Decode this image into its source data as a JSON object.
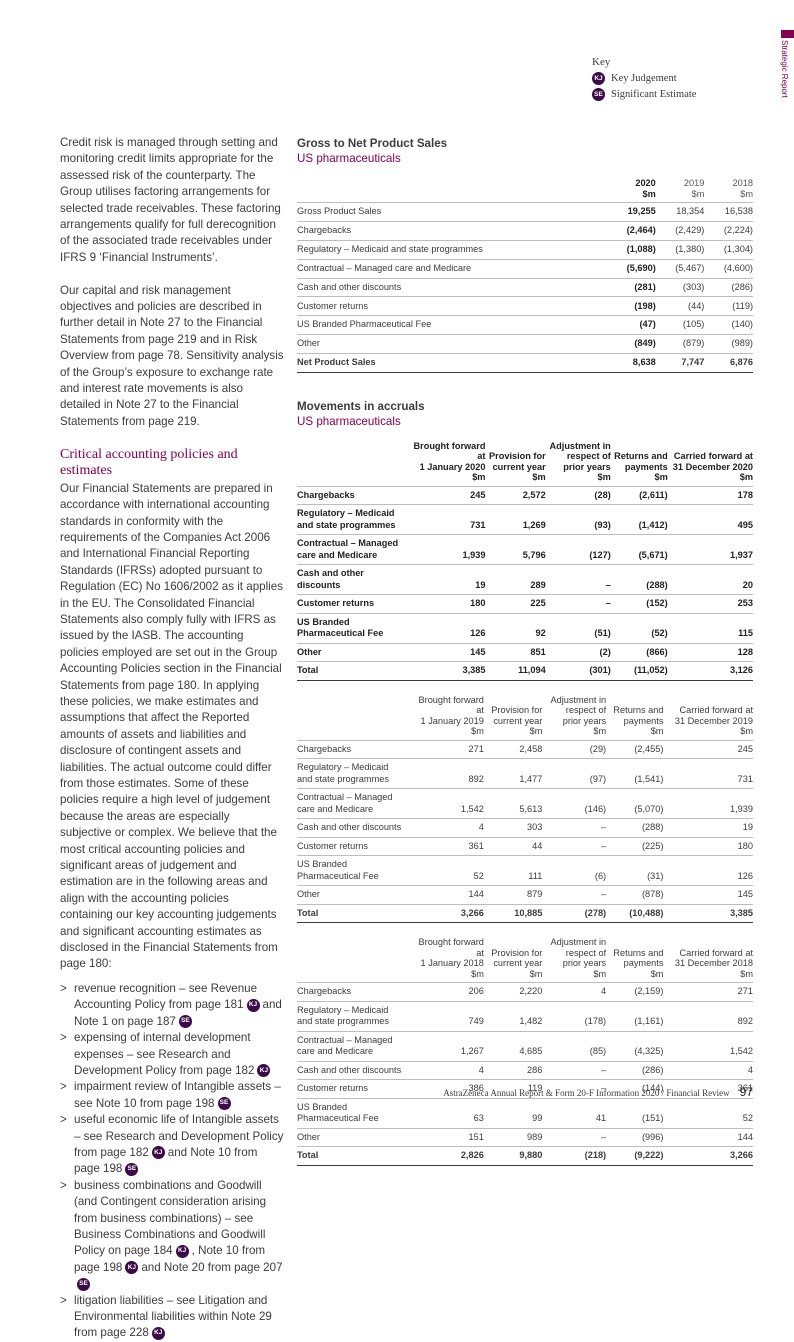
{
  "side_label": "Strategic Report",
  "key": {
    "title": "Key",
    "items": [
      {
        "badge": "KJ",
        "label": "Key Judgement"
      },
      {
        "badge": "SE",
        "label": "Significant Estimate"
      }
    ]
  },
  "left": {
    "paragraphs_top": [
      "Credit risk is managed through setting and monitoring credit limits appropriate for the assessed risk of the counterparty. The Group utilises factoring arrangements for selected trade receivables. These factoring arrangements qualify for full derecognition of the associated trade receivables under IFRS 9 ‘Financial Instruments’.",
      "Our capital and risk management objectives and policies are described in further detail in Note 27 to the Financial Statements from page 219 and in Risk Overview from page 78. Sensitivity analysis of the Group’s exposure to exchange rate and interest rate movements is also detailed in Note 27 to the Financial Statements from page 219."
    ],
    "heading": "Critical accounting policies and estimates",
    "paragraph": "Our Financial Statements are prepared in accordance with international accounting standards in conformity with the requirements of the Companies Act 2006 and International Financial Reporting Standards (IFRSs) adopted pursuant to Regulation (EC) No 1606/2002 as it applies in the EU. The Consolidated Financial Statements also comply fully with IFRS as issued by the IASB. The accounting policies employed are set out in the Group Accounting Policies section in the Financial Statements from page 180. In applying these policies, we make estimates and assumptions that affect the Reported amounts of assets and liabilities and disclosure of contingent assets and liabilities. The actual outcome could differ from those estimates. Some of these policies require a high level of judgement because the areas are especially subjective or complex. We believe that the most critical accounting policies and significant areas of judgement and estimation are in the following areas and align with the accounting policies containing our key accounting judgements and significant accounting estimates as disclosed in the Financial Statements from page 180:",
    "bullet_marker": ">",
    "bullets": [
      [
        {
          "text": "revenue recognition – see Revenue Accounting Policy from page 181"
        },
        {
          "badge": "KJ"
        },
        {
          "text": "and Note 1 on page 187"
        },
        {
          "badge": "SE"
        }
      ],
      [
        {
          "text": "expensing of internal development expenses – see Research and Development Policy from page 182"
        },
        {
          "badge": "KJ"
        }
      ],
      [
        {
          "text": "impairment review of Intangible assets – see Note 10 from page 198"
        },
        {
          "badge": "SE"
        }
      ],
      [
        {
          "text": "useful economic life of Intangible assets – see Research and Development Policy from page 182"
        },
        {
          "badge": "KJ"
        },
        {
          "text": "and Note 10 from page 198"
        },
        {
          "badge": "SE"
        }
      ],
      [
        {
          "text": "business combinations and Goodwill (and Contingent consideration arising from business combinations) – see Business Combinations and Goodwill Policy on page 184"
        },
        {
          "badge": "KJ"
        },
        {
          "text": ", Note 10 from page 198"
        },
        {
          "badge": "KJ"
        },
        {
          "text": "and Note 20 from page 207"
        },
        {
          "badge": "SE"
        }
      ],
      [
        {
          "text": "litigation liabilities – see Litigation and Environmental liabilities within Note 29 from page 228"
        },
        {
          "badge": "KJ"
        }
      ]
    ]
  },
  "gross_table": {
    "title": "Gross to Net Product Sales",
    "subtitle": "US pharmaceuticals",
    "header": [
      "",
      "2020\n$m",
      "2019\n$m",
      "2018\n$m"
    ],
    "rows": [
      [
        "Gross Product Sales",
        "19,255",
        "18,354",
        "16,538"
      ],
      [
        "Chargebacks",
        "(2,464)",
        "(2,429)",
        "(2,224)"
      ],
      [
        "Regulatory – Medicaid and state programmes",
        "(1,088)",
        "(1,380)",
        "(1,304)"
      ],
      [
        "Contractual – Managed care and Medicare",
        "(5,690)",
        "(5,467)",
        "(4,600)"
      ],
      [
        "Cash and other discounts",
        "(281)",
        "(303)",
        "(286)"
      ],
      [
        "Customer returns",
        "(198)",
        "(44)",
        "(119)"
      ],
      [
        "US Branded Pharmaceutical Fee",
        "(47)",
        "(105)",
        "(140)"
      ],
      [
        "Other",
        "(849)",
        "(879)",
        "(989)"
      ],
      [
        "Net Product Sales",
        "8,638",
        "7,747",
        "6,876"
      ]
    ]
  },
  "movements": {
    "title": "Movements in accruals",
    "subtitle": "US pharmaceuticals",
    "tables": [
      {
        "header": [
          "",
          "Brought forward\nat\n1 January 2020\n$m",
          "Provision for\ncurrent year\n$m",
          "Adjustment in\nrespect of\nprior years\n$m",
          "Returns and\npayments\n$m",
          "Carried forward at\n31 December 2020\n$m"
        ],
        "rows": [
          [
            "Chargebacks",
            "245",
            "2,572",
            "(28)",
            "(2,611)",
            "178"
          ],
          [
            "Regulatory – Medicaid\nand state programmes",
            "731",
            "1,269",
            "(93)",
            "(1,412)",
            "495"
          ],
          [
            "Contractual – Managed\ncare and Medicare",
            "1,939",
            "5,796",
            "(127)",
            "(5,671)",
            "1,937"
          ],
          [
            "Cash and other discounts",
            "19",
            "289",
            "–",
            "(288)",
            "20"
          ],
          [
            "Customer returns",
            "180",
            "225",
            "–",
            "(152)",
            "253"
          ],
          [
            "US Branded\nPharmaceutical Fee",
            "126",
            "92",
            "(51)",
            "(52)",
            "115"
          ],
          [
            "Other",
            "145",
            "851",
            "(2)",
            "(866)",
            "128"
          ],
          [
            "Total",
            "3,385",
            "11,094",
            "(301)",
            "(11,052)",
            "3,126"
          ]
        ]
      },
      {
        "header": [
          "",
          "Brought forward\nat\n1 January 2019\n$m",
          "Provision for\ncurrent year\n$m",
          "Adjustment in\nrespect of\nprior years\n$m",
          "Returns and\npayments\n$m",
          "Carried forward at\n31 December 2019\n$m"
        ],
        "rows": [
          [
            "Chargebacks",
            "271",
            "2,458",
            "(29)",
            "(2,455)",
            "245"
          ],
          [
            "Regulatory – Medicaid\nand state programmes",
            "892",
            "1,477",
            "(97)",
            "(1,541)",
            "731"
          ],
          [
            "Contractual – Managed\ncare and Medicare",
            "1,542",
            "5,613",
            "(146)",
            "(5,070)",
            "1,939"
          ],
          [
            "Cash and other discounts",
            "4",
            "303",
            "–",
            "(288)",
            "19"
          ],
          [
            "Customer returns",
            "361",
            "44",
            "–",
            "(225)",
            "180"
          ],
          [
            "US Branded\nPharmaceutical Fee",
            "52",
            "111",
            "(6)",
            "(31)",
            "126"
          ],
          [
            "Other",
            "144",
            "879",
            "–",
            "(878)",
            "145"
          ],
          [
            "Total",
            "3,266",
            "10,885",
            "(278)",
            "(10,488)",
            "3,385"
          ]
        ]
      },
      {
        "header": [
          "",
          "Brought forward\nat\n1 January 2018\n$m",
          "Provision for\ncurrent year\n$m",
          "Adjustment in\nrespect of\nprior years\n$m",
          "Returns and\npayments\n$m",
          "Carried forward at\n31 December 2018\n$m"
        ],
        "rows": [
          [
            "Chargebacks",
            "206",
            "2,220",
            "4",
            "(2,159)",
            "271"
          ],
          [
            "Regulatory – Medicaid\nand state programmes",
            "749",
            "1,482",
            "(178)",
            "(1,161)",
            "892"
          ],
          [
            "Contractual – Managed\ncare and Medicare",
            "1,267",
            "4,685",
            "(85)",
            "(4,325)",
            "1,542"
          ],
          [
            "Cash and other discounts",
            "4",
            "286",
            "–",
            "(286)",
            "4"
          ],
          [
            "Customer returns",
            "386",
            "119",
            "–",
            "(144)",
            "361"
          ],
          [
            "US Branded\nPharmaceutical Fee",
            "63",
            "99",
            "41",
            "(151)",
            "52"
          ],
          [
            "Other",
            "151",
            "989",
            "–",
            "(996)",
            "144"
          ],
          [
            "Total",
            "2,826",
            "9,880",
            "(218)",
            "(9,222)",
            "3,266"
          ]
        ]
      }
    ]
  },
  "footer": {
    "text": "AstraZeneca Annual Report & Form 20-F Information 2020 / Financial Review",
    "page": "97"
  }
}
